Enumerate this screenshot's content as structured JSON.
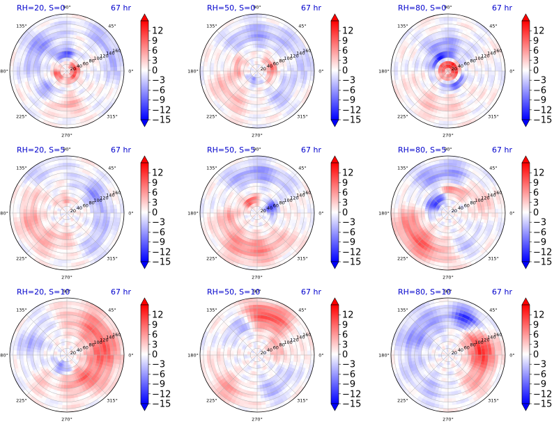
{
  "colors": {
    "negative": "#0000ff",
    "zero": "#ffffff",
    "positive": "#ff0000",
    "title": "#0000cc",
    "grid": "#b0b0b0"
  },
  "chart_data": {
    "type": "heatmap",
    "projection": "polar",
    "colormap": "bwr",
    "colorbar": {
      "vmin": -15,
      "vmax": 15,
      "ticks": [
        -15,
        -12,
        -9,
        -6,
        -3,
        0,
        3,
        6,
        9,
        12
      ],
      "tick_labels": [
        "−15",
        "−12",
        "−9",
        "−6",
        "−3",
        "0",
        "3",
        "6",
        "9",
        "12"
      ],
      "extend": "both"
    },
    "angular_ticks": [
      "0°",
      "45°",
      "90°",
      "135°",
      "180°",
      "225°",
      "270°",
      "315°"
    ],
    "radial_ticks": [
      "20",
      "40",
      "60",
      "80",
      "100",
      "120",
      "140",
      "160"
    ],
    "radial_max": 170,
    "radial_label_angle_deg": 22.5,
    "panels": [
      {
        "title": "RH=20, S=0",
        "time": "67 hr",
        "rh": 20,
        "s": 0,
        "features": [
          {
            "r": 25,
            "theta": 0,
            "amp": 11,
            "sr": 14,
            "st": 90
          },
          {
            "r": 50,
            "theta": 95,
            "amp": -10,
            "sr": 20,
            "st": 35
          },
          {
            "r": 30,
            "theta": 200,
            "amp": 9,
            "sr": 14,
            "st": 40
          },
          {
            "r": 100,
            "theta": 270,
            "amp": 5,
            "sr": 30,
            "st": 25
          },
          {
            "r": 110,
            "theta": 140,
            "amp": -6,
            "sr": 35,
            "st": 40
          },
          {
            "r": 140,
            "theta": 30,
            "amp": -5,
            "sr": 25,
            "st": 40
          },
          {
            "r": 80,
            "theta": 225,
            "amp": -5,
            "sr": 25,
            "st": 30
          }
        ]
      },
      {
        "title": "RH=50, S=0",
        "time": "67 hr",
        "rh": 50,
        "s": 0,
        "features": [
          {
            "r": 45,
            "theta": 10,
            "amp": 8,
            "sr": 15,
            "st": 50
          },
          {
            "r": 60,
            "theta": 170,
            "amp": 5,
            "sr": 20,
            "st": 40
          },
          {
            "r": 110,
            "theta": 90,
            "amp": -5,
            "sr": 35,
            "st": 50
          },
          {
            "r": 110,
            "theta": 220,
            "amp": 4,
            "sr": 35,
            "st": 40
          },
          {
            "r": 100,
            "theta": 320,
            "amp": -4,
            "sr": 30,
            "st": 30
          },
          {
            "r": 30,
            "theta": 250,
            "amp": -6,
            "sr": 12,
            "st": 40
          },
          {
            "r": 140,
            "theta": 20,
            "amp": -3,
            "sr": 25,
            "st": 30
          }
        ]
      },
      {
        "title": "RH=80, S=0",
        "time": "67 hr",
        "rh": 80,
        "s": 0,
        "features": [
          {
            "r": 20,
            "theta": 60,
            "amp": 14,
            "sr": 15,
            "st": 180
          },
          {
            "r": 45,
            "theta": 120,
            "amp": -12,
            "sr": 14,
            "st": 60
          },
          {
            "r": 45,
            "theta": 300,
            "amp": -10,
            "sr": 14,
            "st": 50
          },
          {
            "r": 80,
            "theta": 100,
            "amp": -6,
            "sr": 30,
            "st": 50
          },
          {
            "r": 110,
            "theta": 250,
            "amp": 3,
            "sr": 35,
            "st": 50
          }
        ]
      },
      {
        "title": "RH=20, S=5",
        "time": "67 hr",
        "rh": 20,
        "s": 5,
        "features": [
          {
            "r": 110,
            "theta": 200,
            "amp": 5,
            "sr": 35,
            "st": 60
          },
          {
            "r": 100,
            "theta": 30,
            "amp": -6,
            "sr": 30,
            "st": 40
          },
          {
            "r": 40,
            "theta": 100,
            "amp": 5,
            "sr": 15,
            "st": 40
          },
          {
            "r": 120,
            "theta": 320,
            "amp": -4,
            "sr": 30,
            "st": 30
          },
          {
            "r": 140,
            "theta": 120,
            "amp": -3,
            "sr": 30,
            "st": 30
          },
          {
            "r": 70,
            "theta": 260,
            "amp": 3,
            "sr": 25,
            "st": 35
          }
        ]
      },
      {
        "title": "RH=50, S=5",
        "time": "67 hr",
        "rh": 50,
        "s": 5,
        "features": [
          {
            "r": 40,
            "theta": 120,
            "amp": 10,
            "sr": 15,
            "st": 40
          },
          {
            "r": 45,
            "theta": 20,
            "amp": -11,
            "sr": 18,
            "st": 30
          },
          {
            "r": 110,
            "theta": 260,
            "amp": 7,
            "sr": 40,
            "st": 60
          },
          {
            "r": 120,
            "theta": 90,
            "amp": -6,
            "sr": 30,
            "st": 50
          },
          {
            "r": 80,
            "theta": 190,
            "amp": 4,
            "sr": 25,
            "st": 30
          }
        ]
      },
      {
        "title": "RH=80, S=5",
        "time": "67 hr",
        "rh": 80,
        "s": 5,
        "features": [
          {
            "r": 50,
            "theta": 140,
            "amp": -12,
            "sr": 20,
            "st": 40
          },
          {
            "r": 70,
            "theta": 80,
            "amp": 8,
            "sr": 18,
            "st": 35
          },
          {
            "r": 120,
            "theta": 220,
            "amp": 9,
            "sr": 40,
            "st": 55
          },
          {
            "r": 120,
            "theta": 100,
            "amp": -6,
            "sr": 35,
            "st": 60
          },
          {
            "r": 110,
            "theta": 30,
            "amp": 5,
            "sr": 30,
            "st": 30
          },
          {
            "r": 110,
            "theta": 300,
            "amp": -4,
            "sr": 30,
            "st": 30
          }
        ]
      },
      {
        "title": "RH=20, S=10",
        "time": "67 hr",
        "rh": 20,
        "s": 10,
        "features": [
          {
            "r": 110,
            "theta": 20,
            "amp": 9,
            "sr": 50,
            "st": 70
          },
          {
            "r": 80,
            "theta": 300,
            "amp": 6,
            "sr": 35,
            "st": 40
          },
          {
            "r": 40,
            "theta": 250,
            "amp": -7,
            "sr": 18,
            "st": 40
          },
          {
            "r": 110,
            "theta": 160,
            "amp": -4,
            "sr": 40,
            "st": 50
          },
          {
            "r": 110,
            "theta": 220,
            "amp": 3,
            "sr": 35,
            "st": 30
          }
        ]
      },
      {
        "title": "RH=50, S=10",
        "time": "67 hr",
        "rh": 50,
        "s": 10,
        "features": [
          {
            "r": 120,
            "theta": 75,
            "amp": 11,
            "sr": 40,
            "st": 35
          },
          {
            "r": 100,
            "theta": 120,
            "amp": -6,
            "sr": 30,
            "st": 25
          },
          {
            "r": 130,
            "theta": 230,
            "amp": 5,
            "sr": 35,
            "st": 35
          },
          {
            "r": 110,
            "theta": 300,
            "amp": -4,
            "sr": 35,
            "st": 35
          },
          {
            "r": 60,
            "theta": 20,
            "amp": 5,
            "sr": 25,
            "st": 30
          }
        ]
      },
      {
        "title": "RH=80, S=10",
        "time": "67 hr",
        "rh": 80,
        "s": 10,
        "features": [
          {
            "r": 100,
            "theta": 15,
            "amp": 12,
            "sr": 40,
            "st": 40
          },
          {
            "r": 120,
            "theta": 60,
            "amp": -13,
            "sr": 30,
            "st": 25
          },
          {
            "r": 110,
            "theta": 140,
            "amp": -6,
            "sr": 45,
            "st": 50
          },
          {
            "r": 110,
            "theta": 320,
            "amp": 4,
            "sr": 35,
            "st": 30
          },
          {
            "r": 110,
            "theta": 240,
            "amp": -3,
            "sr": 40,
            "st": 40
          }
        ]
      }
    ]
  }
}
